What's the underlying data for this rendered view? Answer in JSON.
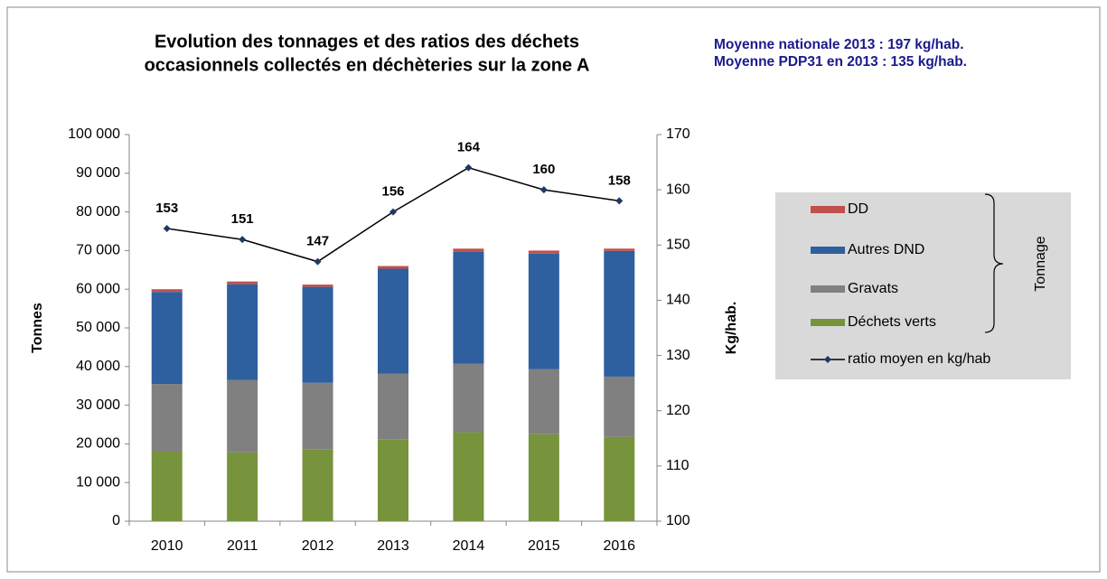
{
  "chart_data": {
    "type": "bar",
    "title": [
      "Evolution des tonnages et des ratios des déchets",
      "occasionnels collectés en déchèteries sur la zone A"
    ],
    "annotations": [
      "Moyenne nationale 2013 : 197 kg/hab.",
      "Moyenne PDP31 en 2013 : 135 kg/hab."
    ],
    "y_label": "Tonnes",
    "y2_label": "Kg/hab.",
    "legend_group_label": "Tonnage",
    "categories": [
      "2010",
      "2011",
      "2012",
      "2013",
      "2014",
      "2015",
      "2016"
    ],
    "series": [
      {
        "name": "Déchets verts",
        "type": "bar",
        "color": "#77933c",
        "values": [
          18000,
          17800,
          18500,
          21200,
          23000,
          22500,
          21800
        ]
      },
      {
        "name": "Gravats",
        "type": "bar",
        "color": "#808080",
        "values": [
          17500,
          18700,
          17300,
          17000,
          17700,
          16800,
          15600
        ]
      },
      {
        "name": "Autres DND",
        "type": "bar",
        "color": "#2e5f9e",
        "values": [
          23800,
          24800,
          24800,
          27100,
          29000,
          29900,
          32500
        ]
      },
      {
        "name": "DD",
        "type": "bar",
        "color": "#c0504d",
        "values": [
          700,
          700,
          600,
          700,
          800,
          800,
          600
        ]
      },
      {
        "name": "ratio moyen en kg/hab",
        "type": "line",
        "axis": "y2",
        "color": "#000000",
        "marker_color": "#1f3864",
        "values": [
          153,
          151,
          147,
          156,
          164,
          160,
          158
        ]
      }
    ],
    "ylim": [
      0,
      100000
    ],
    "yticks": [
      0,
      {
        "value": 10000,
        "label": "10 000"
      },
      {
        "value": 20000,
        "label": "20 000"
      },
      {
        "value": 30000,
        "label": "30 000"
      },
      {
        "value": 40000,
        "label": "40 000"
      },
      {
        "value": 50000,
        "label": "50 000"
      },
      {
        "value": 60000,
        "label": "60 000"
      },
      {
        "value": 70000,
        "label": "70 000"
      },
      {
        "value": 80000,
        "label": "80 000"
      },
      {
        "value": 90000,
        "label": "90 000"
      },
      {
        "value": 100000,
        "label": "100 000"
      }
    ],
    "y2lim": [
      100,
      170
    ],
    "y2ticks": [
      100,
      110,
      120,
      130,
      140,
      150,
      160,
      170
    ],
    "grid": false,
    "legend_position": "right"
  }
}
